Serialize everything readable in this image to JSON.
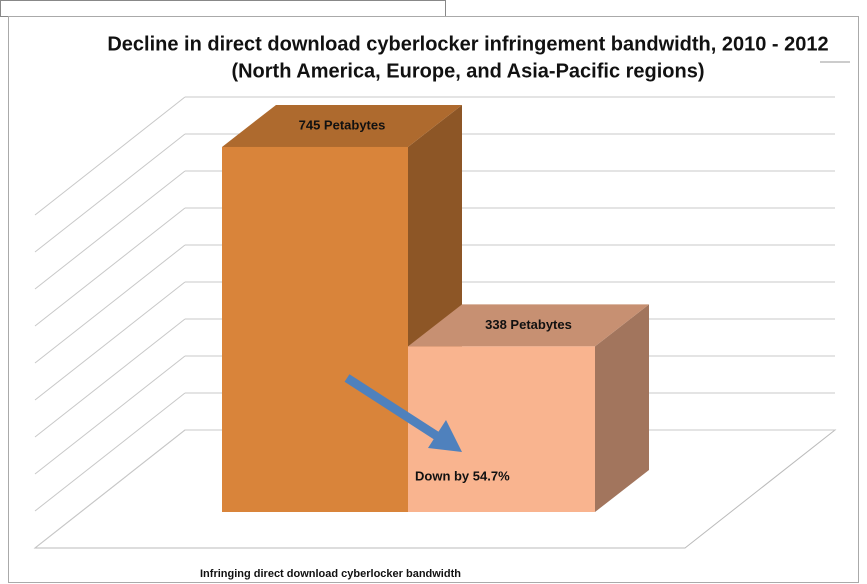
{
  "chart_data": {
    "type": "bar3d",
    "title": "Decline in direct download cyberlocker infringement bandwidth, 2010 - 2012",
    "subtitle": "(North America, Europe, and Asia-Pacific regions)",
    "x_label": "Infringing direct download cyberlocker bandwidth",
    "values": [
      745,
      338
    ],
    "value_labels": [
      "745 Petabytes",
      "338 Petabytes"
    ],
    "colors": [
      "#d9843a",
      "#f9b48f"
    ],
    "annotation": "Down by 54.7%",
    "ylim": [
      0,
      900
    ],
    "yticks": [
      0,
      100,
      200,
      300,
      400,
      500,
      600,
      700,
      800,
      900
    ],
    "grid": true
  }
}
